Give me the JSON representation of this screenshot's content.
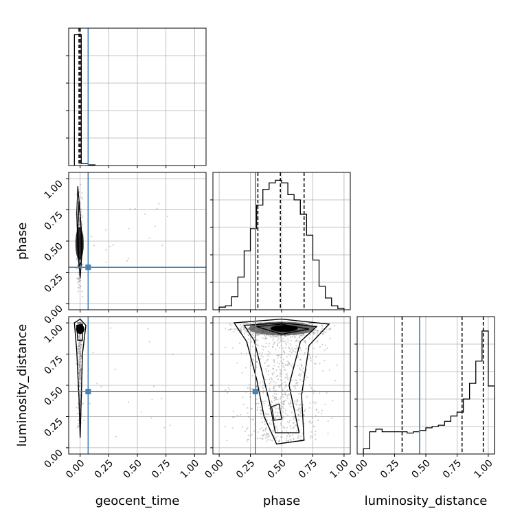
{
  "colors": {
    "truth": "#4682b4",
    "hist": "#000000",
    "grid": "#b0b0b0",
    "scatter": "#777777"
  },
  "chart_data": {
    "type": "corner",
    "parameters": [
      "geocent_time",
      "phase",
      "luminosity_distance"
    ],
    "axis_ticks": [
      [
        "0.00",
        "0.25",
        "0.50",
        "0.75",
        "1.00"
      ],
      [
        "0.00",
        "0.25",
        "0.50",
        "0.75",
        "1.00"
      ],
      [
        "0.00",
        "0.25",
        "0.50",
        "0.75",
        "1.00"
      ]
    ],
    "range": [
      [
        -0.1,
        1.1
      ],
      [
        -0.05,
        1.05
      ],
      [
        -0.05,
        1.05
      ]
    ],
    "truths": [
      0.07,
      0.29,
      0.45
    ],
    "quantiles": {
      "geocent_time": [
        -0.01,
        0.0,
        0.0
      ],
      "phase": [
        0.31,
        0.49,
        0.68
      ],
      "luminosity_distance": [
        0.31,
        0.79,
        0.96
      ]
    },
    "histograms": {
      "geocent_time": {
        "edges": [
          -0.05,
          0.01,
          0.07,
          0.13
        ],
        "counts": [
          1.0,
          0.015,
          0.005
        ]
      },
      "phase": {
        "edges": [
          0.0,
          0.05,
          0.1,
          0.15,
          0.2,
          0.25,
          0.3,
          0.35,
          0.4,
          0.45,
          0.5,
          0.55,
          0.6,
          0.65,
          0.7,
          0.75,
          0.8,
          0.85,
          0.9,
          0.95,
          1.0
        ],
        "counts": [
          0.02,
          0.03,
          0.1,
          0.25,
          0.45,
          0.62,
          0.8,
          0.92,
          0.97,
          0.99,
          0.97,
          0.88,
          0.84,
          0.73,
          0.57,
          0.38,
          0.18,
          0.09,
          0.03,
          0.01
        ]
      },
      "luminosity_distance": {
        "edges": [
          0.0,
          0.05,
          0.1,
          0.15,
          0.2,
          0.25,
          0.3,
          0.35,
          0.4,
          0.45,
          0.5,
          0.55,
          0.6,
          0.65,
          0.7,
          0.75,
          0.8,
          0.85,
          0.9,
          0.95,
          1.0,
          1.05
        ],
        "counts": [
          0.04,
          0.17,
          0.19,
          0.17,
          0.17,
          0.17,
          0.17,
          0.16,
          0.17,
          0.18,
          0.2,
          0.21,
          0.22,
          0.25,
          0.29,
          0.32,
          0.42,
          0.54,
          0.71,
          0.94,
          0.52
        ]
      }
    }
  }
}
